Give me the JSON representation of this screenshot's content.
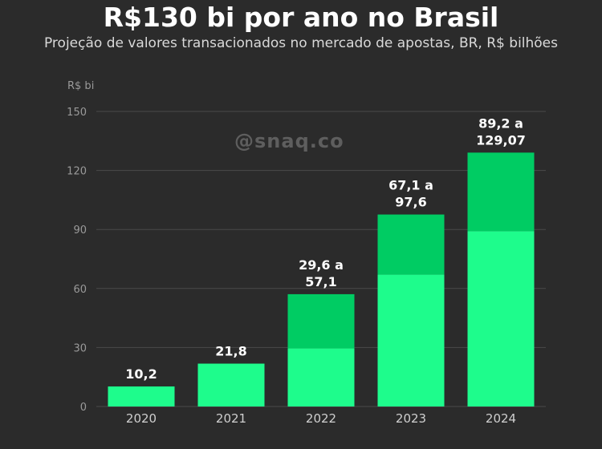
{
  "header": {
    "title": "R$130 bi por ano no Brasil",
    "subtitle": "Projeção de valores transacionados no mercado de apostas, BR, R$ bilhões"
  },
  "watermark": "@snaq.co",
  "colors": {
    "background": "#2b2b2b",
    "bar_base": "#1efc8c",
    "bar_range": "#00cc63",
    "grid": "#4a4a4a",
    "axis_text": "#9a9a9a",
    "label_text": "#ffffff"
  },
  "chart_data": {
    "type": "bar",
    "stacked": true,
    "ylabel": "R$ bi",
    "ylim": [
      0,
      150
    ],
    "yticks": [
      0,
      30,
      60,
      90,
      120,
      150
    ],
    "grid": true,
    "categories": [
      "2020",
      "2021",
      "2022",
      "2023",
      "2024"
    ],
    "series": [
      {
        "values": [
          10.2,
          21.8,
          29.6,
          67.1,
          89.2
        ]
      },
      {
        "values": [
          0,
          0,
          27.5,
          30.5,
          39.87
        ]
      }
    ],
    "data_labels": [
      [
        "10,2"
      ],
      [
        "21,8"
      ],
      [
        "29,6 a",
        "57,1"
      ],
      [
        "67,1 a",
        "97,6"
      ],
      [
        "89,2 a",
        "129,07"
      ]
    ]
  }
}
